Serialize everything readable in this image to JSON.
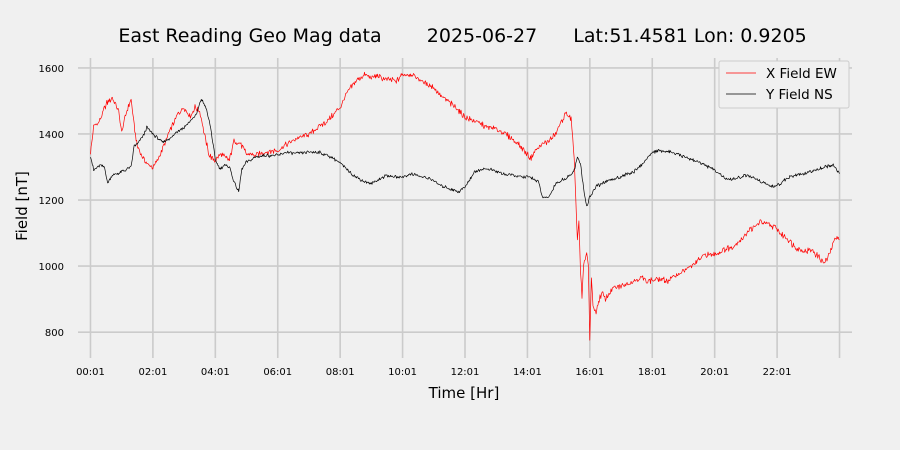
{
  "colors": {
    "background": "#f0f0f0",
    "grid": "#cbcbcb",
    "x_series": "#ff0000",
    "y_series": "#000000"
  },
  "chart_data": {
    "type": "line",
    "title_parts": [
      "East Reading Geo Mag data",
      "2025-06-27",
      "Lat:51.4581  Lon: 0.9205"
    ],
    "xlabel": "Time  [Hr]",
    "ylabel": "Field  [nT]",
    "x_unit": "hours after 00:01",
    "xlim": [
      -0.4,
      24.4
    ],
    "ylim": [
      740,
      1630
    ],
    "grid": true,
    "legend_position": "top-right",
    "x_ticks": [
      {
        "x": 0,
        "label": "00:01"
      },
      {
        "x": 2,
        "label": "02:01"
      },
      {
        "x": 4,
        "label": "04:01"
      },
      {
        "x": 6,
        "label": "06:01"
      },
      {
        "x": 8,
        "label": "08:01"
      },
      {
        "x": 10,
        "label": "10:01"
      },
      {
        "x": 12,
        "label": "12:01"
      },
      {
        "x": 14,
        "label": "14:01"
      },
      {
        "x": 16,
        "label": "16:01"
      },
      {
        "x": 18,
        "label": "18:01"
      },
      {
        "x": 20,
        "label": "20:01"
      },
      {
        "x": 22,
        "label": "22:01"
      },
      {
        "x": 24,
        "label": ""
      }
    ],
    "y_ticks": [
      800,
      1000,
      1200,
      1400,
      1600
    ],
    "series": [
      {
        "name": "X Field EW",
        "color": "#ff0000",
        "x": [
          0,
          0.1,
          0.3,
          0.5,
          0.7,
          0.9,
          1.0,
          1.15,
          1.3,
          1.4,
          1.5,
          1.6,
          1.7,
          1.85,
          2.0,
          2.2,
          2.5,
          2.8,
          3.0,
          3.2,
          3.35,
          3.5,
          3.65,
          3.8,
          4.0,
          4.2,
          4.3,
          4.45,
          4.6,
          4.8,
          5.0,
          5.3,
          5.6,
          6.0,
          6.3,
          6.6,
          7.0,
          7.3,
          7.6,
          8.0,
          8.2,
          8.5,
          8.8,
          9.0,
          9.2,
          9.5,
          9.8,
          10.0,
          10.3,
          10.6,
          11.0,
          11.3,
          11.7,
          12.0,
          12.3,
          12.7,
          13.0,
          13.3,
          13.6,
          13.9,
          14.1,
          14.25,
          14.5,
          14.7,
          14.9,
          15.1,
          15.25,
          15.4,
          15.5,
          15.6,
          15.65,
          15.7,
          15.75,
          15.8,
          15.85,
          15.9,
          15.95,
          16.0,
          16.05,
          16.1,
          16.2,
          16.3,
          16.4,
          16.5,
          16.7,
          17.0,
          17.3,
          17.6,
          17.9,
          18.2,
          18.5,
          18.8,
          19.1,
          19.4,
          19.7,
          20.0,
          20.3,
          20.6,
          20.9,
          21.1,
          21.3,
          21.5,
          21.7,
          21.9,
          22.1,
          22.3,
          22.5,
          22.7,
          22.9,
          23.1,
          23.3,
          23.5,
          23.6,
          23.7,
          23.8,
          23.9,
          24.0
        ],
        "values": [
          1340,
          1420,
          1440,
          1490,
          1510,
          1470,
          1405,
          1465,
          1505,
          1425,
          1360,
          1345,
          1325,
          1305,
          1300,
          1330,
          1400,
          1460,
          1480,
          1455,
          1480,
          1470,
          1400,
          1335,
          1320,
          1340,
          1330,
          1320,
          1380,
          1370,
          1340,
          1335,
          1345,
          1350,
          1370,
          1385,
          1400,
          1420,
          1440,
          1480,
          1520,
          1560,
          1580,
          1570,
          1575,
          1565,
          1560,
          1580,
          1580,
          1560,
          1540,
          1510,
          1480,
          1450,
          1440,
          1420,
          1415,
          1400,
          1380,
          1350,
          1325,
          1350,
          1370,
          1380,
          1400,
          1440,
          1465,
          1445,
          1320,
          1080,
          1140,
          980,
          905,
          1000,
          1020,
          1040,
          1000,
          780,
          960,
          880,
          860,
          900,
          920,
          900,
          930,
          940,
          950,
          965,
          955,
          960,
          955,
          975,
          990,
          1010,
          1035,
          1035,
          1050,
          1060,
          1085,
          1110,
          1120,
          1135,
          1125,
          1120,
          1100,
          1085,
          1065,
          1050,
          1045,
          1050,
          1030,
          1010,
          1020,
          1045,
          1070,
          1090,
          1080
        ]
      },
      {
        "name": "Y Field NS",
        "color": "#000000",
        "x": [
          0,
          0.1,
          0.3,
          0.45,
          0.55,
          0.7,
          1.0,
          1.3,
          1.4,
          1.5,
          1.7,
          1.8,
          2.0,
          2.3,
          2.6,
          2.8,
          3.0,
          3.2,
          3.4,
          3.55,
          3.7,
          3.85,
          4.0,
          4.15,
          4.3,
          4.45,
          4.6,
          4.75,
          4.85,
          5.0,
          5.3,
          5.6,
          6.0,
          6.3,
          6.6,
          7.0,
          7.3,
          7.6,
          7.9,
          8.2,
          8.5,
          8.8,
          9.0,
          9.3,
          9.5,
          9.7,
          10.0,
          10.3,
          10.6,
          10.9,
          11.2,
          11.5,
          11.8,
          12.0,
          12.3,
          12.6,
          12.9,
          13.2,
          13.5,
          13.8,
          14.0,
          14.2,
          14.35,
          14.5,
          14.7,
          14.9,
          15.1,
          15.3,
          15.5,
          15.6,
          15.7,
          15.8,
          15.9,
          16.0,
          16.2,
          16.5,
          16.8,
          17.1,
          17.4,
          17.7,
          18.0,
          18.3,
          18.6,
          18.9,
          19.2,
          19.5,
          19.8,
          20.1,
          20.4,
          20.7,
          21.0,
          21.3,
          21.5,
          21.7,
          21.9,
          22.1,
          22.3,
          22.6,
          22.9,
          23.2,
          23.5,
          23.8,
          24.0
        ],
        "values": [
          1335,
          1290,
          1305,
          1300,
          1250,
          1275,
          1285,
          1300,
          1365,
          1370,
          1395,
          1420,
          1400,
          1375,
          1390,
          1410,
          1420,
          1440,
          1460,
          1505,
          1480,
          1420,
          1320,
          1295,
          1305,
          1300,
          1255,
          1225,
          1295,
          1315,
          1330,
          1335,
          1335,
          1345,
          1340,
          1345,
          1345,
          1335,
          1320,
          1295,
          1270,
          1255,
          1250,
          1265,
          1275,
          1270,
          1270,
          1280,
          1270,
          1265,
          1245,
          1235,
          1225,
          1240,
          1285,
          1295,
          1290,
          1280,
          1275,
          1270,
          1270,
          1265,
          1255,
          1205,
          1210,
          1250,
          1260,
          1270,
          1290,
          1330,
          1310,
          1235,
          1180,
          1210,
          1240,
          1255,
          1265,
          1275,
          1285,
          1310,
          1345,
          1350,
          1345,
          1335,
          1325,
          1315,
          1300,
          1285,
          1260,
          1265,
          1275,
          1265,
          1255,
          1245,
          1240,
          1250,
          1265,
          1275,
          1280,
          1290,
          1300,
          1305,
          1280
        ]
      }
    ]
  }
}
